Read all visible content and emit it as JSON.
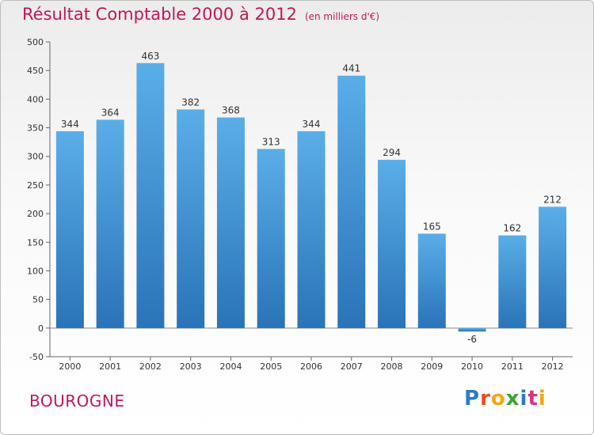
{
  "header": {
    "title": "Résultat Comptable 2000 à 2012",
    "subtitle": "(en milliers d'€)"
  },
  "commune": "BOUROGNE",
  "logo": {
    "text": "Proxiti"
  },
  "colors": {
    "bar": "#3a8fd6",
    "bar_light": "#5aaee8",
    "bar_dark": "#2a73b8",
    "title": "#c2185b"
  },
  "chart_data": {
    "type": "bar",
    "title": "Résultat Comptable 2000 à 2012",
    "subtitle": "(en milliers d'€)",
    "categories": [
      "2000",
      "2001",
      "2002",
      "2003",
      "2004",
      "2005",
      "2006",
      "2007",
      "2008",
      "2009",
      "2010",
      "2011",
      "2012"
    ],
    "values": [
      344,
      364,
      463,
      382,
      368,
      313,
      344,
      441,
      294,
      165,
      -6,
      162,
      212
    ],
    "ylim": [
      -50,
      500
    ],
    "yticks": [
      -50,
      0,
      50,
      100,
      150,
      200,
      250,
      300,
      350,
      400,
      450,
      500
    ],
    "xlabel": "",
    "ylabel": "",
    "grid": false
  }
}
